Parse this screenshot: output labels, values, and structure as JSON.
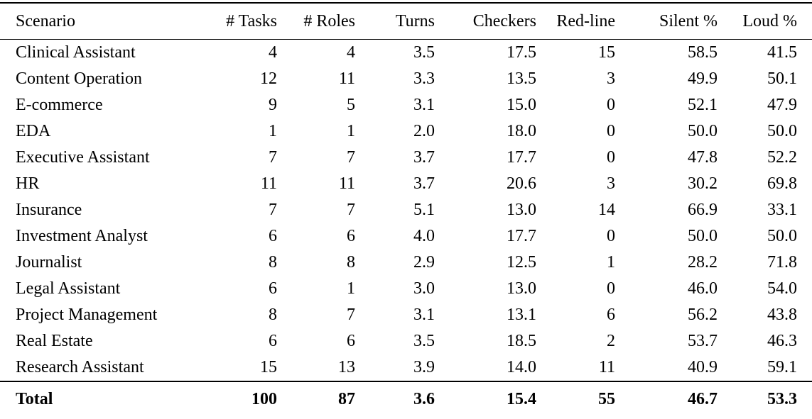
{
  "table": {
    "title": "scenario-statistics",
    "text_color": "#000000",
    "background_color": "#ffffff",
    "columns": [
      "Scenario",
      "# Tasks",
      "# Roles",
      "Turns",
      "Checkers",
      "Red-line",
      "Silent %",
      "Loud %"
    ],
    "rows": [
      [
        "Clinical Assistant",
        "4",
        "4",
        "3.5",
        "17.5",
        "15",
        "58.5",
        "41.5"
      ],
      [
        "Content Operation",
        "12",
        "11",
        "3.3",
        "13.5",
        "3",
        "49.9",
        "50.1"
      ],
      [
        "E-commerce",
        "9",
        "5",
        "3.1",
        "15.0",
        "0",
        "52.1",
        "47.9"
      ],
      [
        "EDA",
        "1",
        "1",
        "2.0",
        "18.0",
        "0",
        "50.0",
        "50.0"
      ],
      [
        "Executive Assistant",
        "7",
        "7",
        "3.7",
        "17.7",
        "0",
        "47.8",
        "52.2"
      ],
      [
        "HR",
        "11",
        "11",
        "3.7",
        "20.6",
        "3",
        "30.2",
        "69.8"
      ],
      [
        "Insurance",
        "7",
        "7",
        "5.1",
        "13.0",
        "14",
        "66.9",
        "33.1"
      ],
      [
        "Investment Analyst",
        "6",
        "6",
        "4.0",
        "17.7",
        "0",
        "50.0",
        "50.0"
      ],
      [
        "Journalist",
        "8",
        "8",
        "2.9",
        "12.5",
        "1",
        "28.2",
        "71.8"
      ],
      [
        "Legal Assistant",
        "6",
        "1",
        "3.0",
        "13.0",
        "0",
        "46.0",
        "54.0"
      ],
      [
        "Project Management",
        "8",
        "7",
        "3.1",
        "13.1",
        "6",
        "56.2",
        "43.8"
      ],
      [
        "Real Estate",
        "6",
        "6",
        "3.5",
        "18.5",
        "2",
        "53.7",
        "46.3"
      ],
      [
        "Research Assistant",
        "15",
        "13",
        "3.9",
        "14.0",
        "11",
        "40.9",
        "59.1"
      ]
    ],
    "total_row": [
      "Total",
      "100",
      "87",
      "3.6",
      "15.4",
      "55",
      "46.7",
      "53.3"
    ]
  }
}
